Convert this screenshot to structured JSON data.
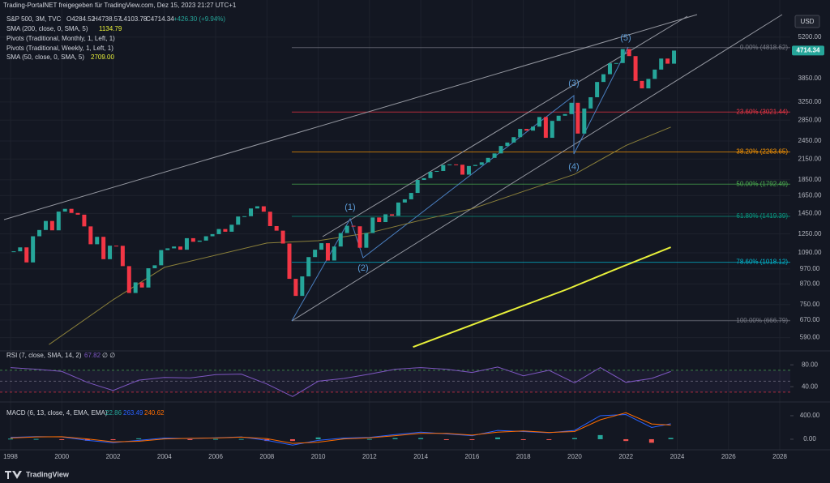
{
  "header": {
    "share": "Trading-PortalNET freigegeben für TradingView.com, Dez 15, 2023 21:27 UTC+1",
    "symbol": "S&P 500, 3M, TVC",
    "open": "O4284.52",
    "high": "H4738.57",
    "low": "L4103.78",
    "close": "C4714.34",
    "change": "+426.30 (+9.94%)",
    "indicators": [
      {
        "name": "SMA (200, close, 0, SMA, 5)"
      },
      {
        "name": "Pivots (Traditional, Monthly, 1, Left, 1)"
      },
      {
        "name": "Pivots (Traditional, Weekly, 1, Left, 1)"
      },
      {
        "name": "SMA (50, close, 0, SMA, 5)"
      }
    ],
    "currency": "USD",
    "waves": [
      "(1)",
      "(2)",
      "(3)",
      "(4)",
      "(5)"
    ],
    "brand": "TradingView"
  },
  "chart_data": [
    {
      "type": "candlestick",
      "log_scale": true,
      "grid": true,
      "up_color": "#26a69a",
      "down_color": "#f23645",
      "xlim": [
        1997.59,
        2028.41
      ],
      "xticks": [
        1998,
        2000,
        2002,
        2004,
        2006,
        2008,
        2010,
        2012,
        2014,
        2016,
        2018,
        2020,
        2022,
        2024,
        2026,
        2028
      ],
      "ylim": [
        539,
        6800
      ],
      "yticks": [
        {
          "value": 5200,
          "label": "5200.00"
        },
        {
          "value": 3850,
          "label": "3850.00"
        },
        {
          "value": 3250,
          "label": "3250.00"
        },
        {
          "value": 2850,
          "label": "2850.00"
        },
        {
          "value": 2450,
          "label": "2450.00"
        },
        {
          "value": 2150,
          "label": "2150.00"
        },
        {
          "value": 1850,
          "label": "1850.00"
        },
        {
          "value": 1650,
          "label": "1650.00"
        },
        {
          "value": 1450,
          "label": "1450.00"
        },
        {
          "value": 1250,
          "label": "1250.00"
        },
        {
          "value": 1090,
          "label": "1090.00"
        },
        {
          "value": 970,
          "label": "970.00"
        },
        {
          "value": 870,
          "label": "870.00"
        },
        {
          "value": 750,
          "label": "750.00"
        },
        {
          "value": 670,
          "label": "670.00"
        },
        {
          "value": 590,
          "label": "590.00"
        }
      ],
      "x": [
        1998,
        1998.25,
        1998.5,
        1998.75,
        1999,
        1999.25,
        1999.5,
        1999.75,
        2000,
        2000.25,
        2000.5,
        2000.75,
        2001,
        2001.25,
        2001.5,
        2001.75,
        2002,
        2002.25,
        2002.5,
        2002.75,
        2003,
        2003.25,
        2003.5,
        2003.75,
        2004,
        2004.25,
        2004.5,
        2004.75,
        2005,
        2005.25,
        2005.5,
        2005.75,
        2006,
        2006.25,
        2006.5,
        2006.75,
        2007,
        2007.25,
        2007.5,
        2007.75,
        2008,
        2008.25,
        2008.5,
        2008.75,
        2009,
        2009.25,
        2009.5,
        2009.75,
        2010,
        2010.25,
        2010.5,
        2010.75,
        2011,
        2011.25,
        2011.5,
        2011.75,
        2012,
        2012.25,
        2012.5,
        2012.75,
        2013,
        2013.25,
        2013.5,
        2013.75,
        2014,
        2014.25,
        2014.5,
        2014.75,
        2015,
        2015.25,
        2015.5,
        2015.75,
        2016,
        2016.25,
        2016.5,
        2016.75,
        2017,
        2017.25,
        2017.5,
        2017.75,
        2018,
        2018.25,
        2018.5,
        2018.75,
        2019,
        2019.25,
        2019.5,
        2019.75,
        2020,
        2020.25,
        2020.5,
        2020.75,
        2021,
        2021.25,
        2021.5,
        2021.75,
        2022,
        2022.25,
        2022.5,
        2022.75,
        2023,
        2023.25,
        2023.5,
        2023.75
      ],
      "close": [
        1102,
        1134,
        1017,
        1229,
        1286,
        1373,
        1283,
        1469,
        1499,
        1455,
        1437,
        1320,
        1160,
        1224,
        1041,
        1148,
        1147,
        990,
        815,
        880,
        848,
        975,
        996,
        1112,
        1126,
        1141,
        1115,
        1212,
        1181,
        1191,
        1229,
        1248,
        1295,
        1270,
        1336,
        1418,
        1421,
        1503,
        1527,
        1468,
        1323,
        1280,
        1166,
        903,
        798,
        919,
        1057,
        1115,
        1169,
        1031,
        1141,
        1258,
        1326,
        1321,
        1131,
        1258,
        1408,
        1362,
        1441,
        1426,
        1569,
        1606,
        1682,
        1848,
        1872,
        1960,
        1972,
        2059,
        2068,
        2063,
        1920,
        2044,
        2060,
        2099,
        2168,
        2239,
        2363,
        2423,
        2519,
        2674,
        2641,
        2718,
        2914,
        2507,
        2834,
        2942,
        2977,
        3231,
        2585,
        3100,
        3363,
        3756,
        3973,
        4298,
        4308,
        4766,
        4530,
        3785,
        3586,
        3840,
        4109,
        4450,
        4288,
        4714.34
      ],
      "sma": [
        {
          "name": "SMA (200, close, 0, SMA, 5)",
          "last_label": "1134.79",
          "color": "#e8f03a",
          "x": [
            2013.7,
            2016.5,
            2019.7,
            2021.5,
            2023.75
          ],
          "values": [
            551,
            670,
            837,
            960,
            1134.79
          ]
        },
        {
          "name": "SMA (50, close, 0, SMA, 5)",
          "last_label": "2709.00",
          "color": "#8a7f3a",
          "x": [
            1999.5,
            2002,
            2004,
            2008,
            2010,
            2012,
            2014,
            2016,
            2018,
            2020,
            2022,
            2023.75
          ],
          "values": [
            561,
            776,
            981,
            1170,
            1190,
            1260,
            1380,
            1500,
            1700,
            1925,
            2370,
            2709
          ]
        }
      ],
      "fib_levels": [
        {
          "value": 4818.62,
          "label": "0.00% (4818.62)",
          "color": "#787b86"
        },
        {
          "value": 3021.44,
          "label": "23.60% (3021.44)",
          "color": "#f23645"
        },
        {
          "value": 2263.65,
          "label": "38.20% (2263.65)",
          "color": "#ff9800"
        },
        {
          "value": 1792.49,
          "label": "50.00% (1792.49)",
          "color": "#4caf50"
        },
        {
          "value": 1419.39,
          "label": "61.80% (1419.39)",
          "color": "#089981"
        },
        {
          "value": 1018.12,
          "label": "78.60% (1018.12)",
          "color": "#00bcd4"
        },
        {
          "value": 666.79,
          "label": "100.00% (666.79)",
          "color": "#787b86"
        }
      ]
    },
    {
      "type": "line",
      "title": "RSI (7, close, SMA, 14, 2)",
      "extra": "∅ ∅",
      "color": "#7e57c2",
      "ylim": [
        15,
        104
      ],
      "yticks": [
        {
          "value": 80,
          "label": "80.00"
        },
        {
          "value": 40,
          "label": "40.00"
        }
      ],
      "levels": [
        70,
        50,
        30
      ],
      "x": [
        1998,
        1999,
        2000,
        2001,
        2002,
        2003,
        2004,
        2005,
        2006,
        2007,
        2008,
        2009,
        2010,
        2011,
        2012,
        2013,
        2014,
        2015,
        2016,
        2017,
        2018,
        2019,
        2020,
        2021,
        2022,
        2023,
        2023.75
      ],
      "values": [
        75,
        72,
        68,
        48,
        33,
        52,
        57,
        56,
        62,
        63,
        45,
        22,
        50,
        55,
        63,
        72,
        75,
        72,
        66,
        76,
        60,
        70,
        47,
        75,
        48,
        55,
        67.82
      ]
    },
    {
      "type": "macd",
      "title": "MACD (6, 13, close, 4, EMA, EMA)",
      "ylim": [
        -152,
        620
      ],
      "yticks": [
        {
          "value": 400,
          "label": "400.00"
        },
        {
          "value": 0,
          "label": "0.00"
        }
      ],
      "x": [
        1998,
        1999,
        2000,
        2001,
        2002,
        2003,
        2004,
        2005,
        2006,
        2007,
        2008,
        2009,
        2010,
        2011,
        2012,
        2013,
        2014,
        2015,
        2016,
        2017,
        2018,
        2019,
        2020,
        2021,
        2022,
        2023,
        2023.75
      ],
      "histogram": {
        "up_color": "#26a69a",
        "down_color": "#ef5350",
        "values": [
          10,
          5,
          -2,
          -25,
          -15,
          15,
          15,
          -5,
          5,
          5,
          -30,
          -30,
          30,
          15,
          5,
          20,
          20,
          -10,
          -10,
          30,
          -10,
          -5,
          20,
          70,
          -30,
          -60,
          22.86
        ]
      },
      "series": [
        {
          "color": "#2962ff",
          "values": [
            30,
            45,
            40,
            -20,
            -60,
            -20,
            20,
            10,
            25,
            40,
            -20,
            -100,
            -20,
            20,
            30,
            80,
            120,
            90,
            60,
            150,
            130,
            110,
            150,
            400,
            420,
            200,
            263.49
          ]
        },
        {
          "color": "#ff6d00",
          "values": [
            20,
            40,
            42,
            5,
            -45,
            -35,
            5,
            15,
            20,
            35,
            10,
            -70,
            -50,
            5,
            25,
            60,
            100,
            100,
            70,
            120,
            140,
            115,
            130,
            330,
            450,
            260,
            240.62
          ]
        }
      ]
    }
  ]
}
